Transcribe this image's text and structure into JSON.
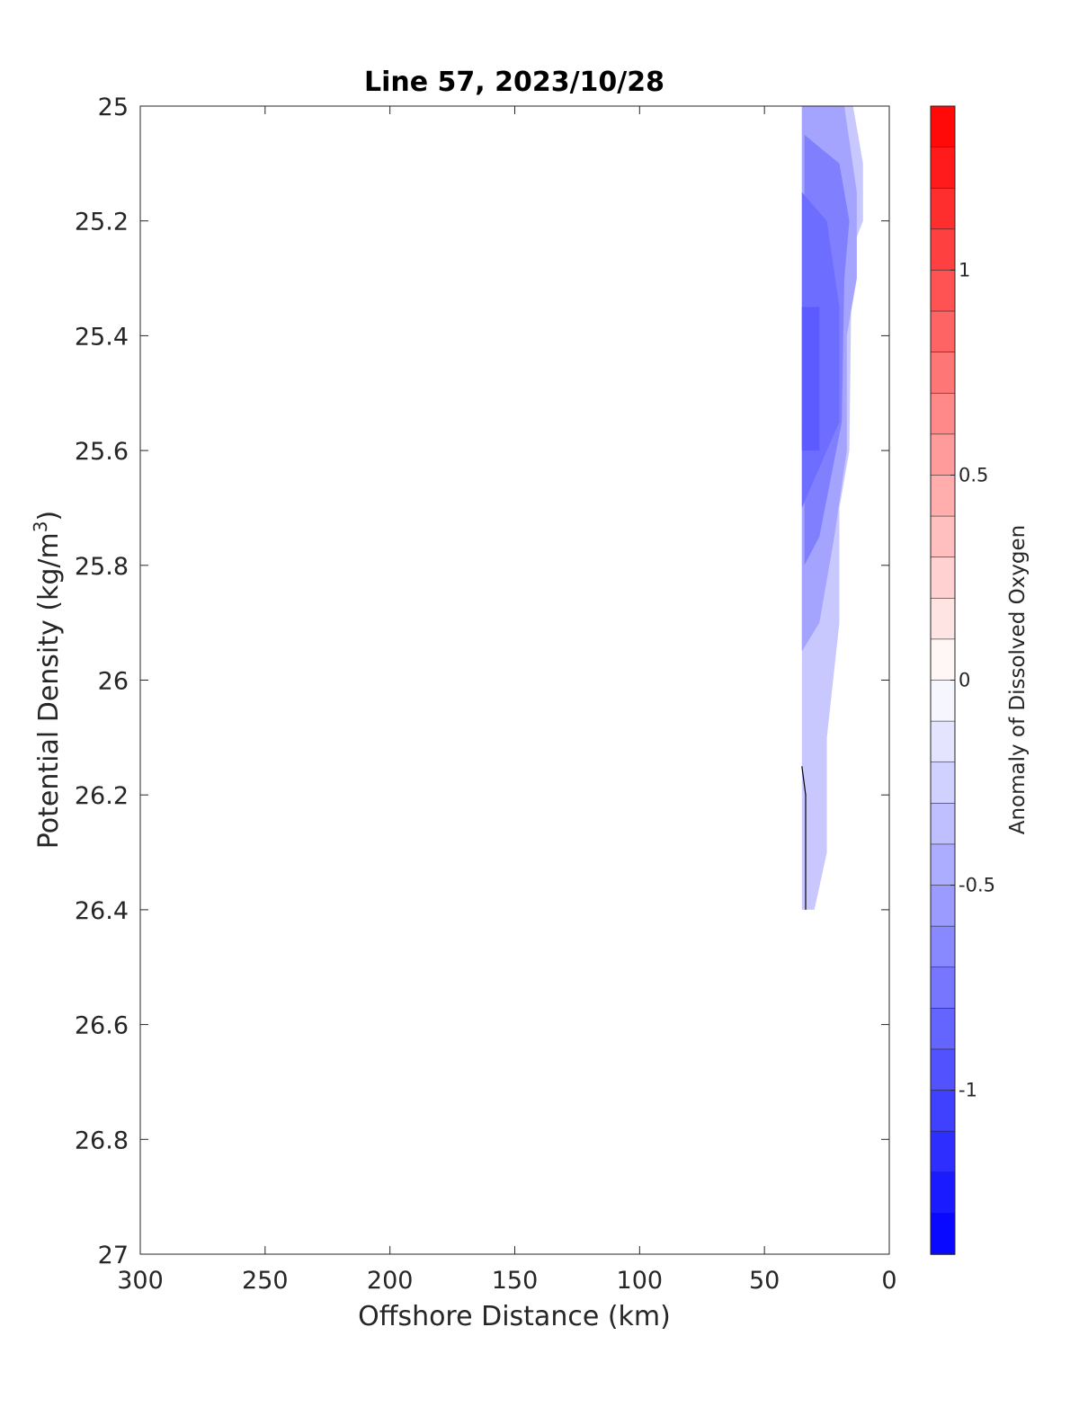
{
  "chart_data": {
    "type": "contour",
    "title": "Line 57, 2023/10/28",
    "xlabel": "Offshore Distance (km)",
    "ylabel": "Potential Density (kg/m",
    "ylabel_superscript": "3",
    "ylabel_suffix": ")",
    "xlim": [
      300,
      0
    ],
    "ylim": [
      25,
      27
    ],
    "x_reversed": true,
    "y_reversed": true,
    "xticks": [
      300,
      250,
      200,
      150,
      100,
      50,
      0
    ],
    "xtick_labels": [
      "300",
      "250",
      "200",
      "150",
      "100",
      "50",
      "0"
    ],
    "yticks": [
      25,
      25.2,
      25.4,
      25.6,
      25.8,
      26,
      26.2,
      26.4,
      26.6,
      26.8,
      27
    ],
    "ytick_labels": [
      "25",
      "25.2",
      "25.4",
      "25.6",
      "25.8",
      "26",
      "26.2",
      "26.4",
      "26.6",
      "26.8",
      "27"
    ],
    "colorbar": {
      "label": "Anomaly of Dissolved Oxygen",
      "range": [
        -1.4,
        1.4
      ],
      "levels": 28,
      "ticks": [
        -1,
        -0.5,
        0,
        0.5,
        1
      ],
      "tick_labels": [
        "-1",
        "-0.5",
        "0",
        "0.5",
        "1"
      ],
      "colormap": "blue-white-red",
      "low_color": "#0000ff",
      "mid_color": "#ffffff",
      "high_color": "#ff0000"
    },
    "contour_bands": [
      {
        "level": -0.3,
        "points": [
          [
            35,
            25.0
          ],
          [
            14.5,
            25.0
          ],
          [
            10.5,
            25.1
          ],
          [
            10.5,
            25.2
          ],
          [
            15,
            25.25
          ],
          [
            16,
            25.6
          ],
          [
            20,
            25.7
          ],
          [
            20,
            25.9
          ],
          [
            25,
            26.1
          ],
          [
            25,
            26.3
          ],
          [
            30,
            26.4
          ],
          [
            35,
            26.4
          ],
          [
            35,
            25.0
          ]
        ]
      },
      {
        "level": -0.5,
        "points": [
          [
            35,
            25.0
          ],
          [
            18,
            25.0
          ],
          [
            13,
            25.15
          ],
          [
            13,
            25.3
          ],
          [
            17,
            25.4
          ],
          [
            17,
            25.6
          ],
          [
            22,
            25.75
          ],
          [
            28,
            25.9
          ],
          [
            35,
            25.95
          ],
          [
            35,
            25.0
          ]
        ]
      },
      {
        "level": -0.7,
        "points": [
          [
            34,
            25.05
          ],
          [
            20,
            25.1
          ],
          [
            16,
            25.2
          ],
          [
            18,
            25.3
          ],
          [
            19,
            25.55
          ],
          [
            28,
            25.75
          ],
          [
            34,
            25.8
          ],
          [
            34,
            25.05
          ]
        ]
      },
      {
        "level": -0.8,
        "points": [
          [
            35,
            25.15
          ],
          [
            25,
            25.2
          ],
          [
            20,
            25.35
          ],
          [
            20,
            25.55
          ],
          [
            30,
            25.65
          ],
          [
            35,
            25.7
          ],
          [
            35,
            25.15
          ]
        ]
      },
      {
        "level": -0.9,
        "points": [
          [
            35,
            25.35
          ],
          [
            28,
            25.35
          ],
          [
            28,
            25.6
          ],
          [
            35,
            25.6
          ],
          [
            35,
            25.35
          ]
        ]
      }
    ],
    "lines": [
      {
        "name": "",
        "points": [
          [
            35,
            26.15
          ],
          [
            33.5,
            26.2
          ],
          [
            33.5,
            26.4
          ]
        ]
      }
    ]
  }
}
